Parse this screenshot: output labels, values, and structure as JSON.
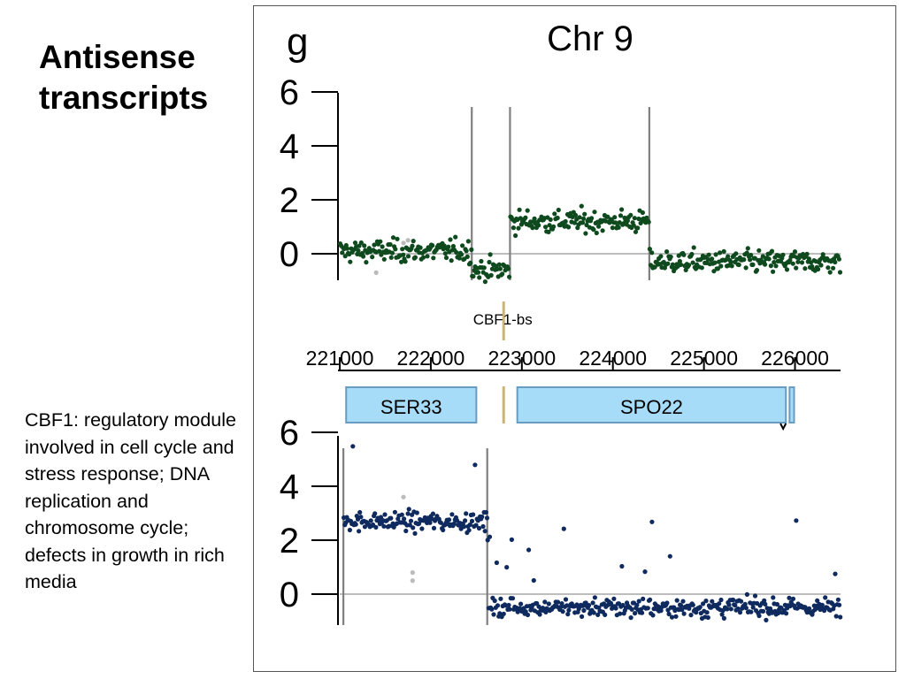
{
  "slide": {
    "title": "Antisense transcripts",
    "note": "CBF1: regulatory module involved in cell cycle and stress response; DNA replication and chromosome cycle; defects in growth in rich media"
  },
  "colors": {
    "top_points": "#0f4a1e",
    "bottom_points": "#0f2a5e",
    "outlier_points": "#bbbbbb",
    "gene_fill": "#a6dcf8",
    "gene_stroke": "#6a9cc0",
    "binding_site": "#c9b47a",
    "boundary_line": "#808080",
    "baseline": "#bdbdbd"
  },
  "chart_data": {
    "type": "scatter",
    "panel_label": "g",
    "title": "Chr 9",
    "x_ticks": [
      221000,
      222000,
      223000,
      224000,
      225000,
      226000
    ],
    "xlim": [
      221000,
      226500
    ],
    "y_ticks": [
      0,
      2,
      4,
      6
    ],
    "ylim": [
      -1,
      6
    ],
    "top_panel": {
      "strand": "top",
      "boundaries": [
        222450,
        222870,
        224400
      ],
      "baseline": 0,
      "segments": [
        {
          "x_start": 221000,
          "x_end": 222450,
          "mean": 0.1
        },
        {
          "x_start": 222450,
          "x_end": 222870,
          "mean": -0.6
        },
        {
          "x_start": 222870,
          "x_end": 224400,
          "mean": 1.2
        },
        {
          "x_start": 224400,
          "x_end": 226500,
          "mean": -0.3
        }
      ],
      "outliers": [
        {
          "x": 221400,
          "y": -0.7
        },
        {
          "x": 221700,
          "y": 0.4
        },
        {
          "x": 221750,
          "y": 0.5
        }
      ]
    },
    "bottom_panel": {
      "strand": "bottom",
      "boundaries": [
        221040,
        222620
      ],
      "baseline": 0,
      "segments": [
        {
          "x_start": 221040,
          "x_end": 222620,
          "mean": 2.7
        },
        {
          "x_start": 222620,
          "x_end": 226500,
          "mean": -0.5
        }
      ],
      "outliers": [
        {
          "x": 221800,
          "y": 0.8
        },
        {
          "x": 221800,
          "y": 0.5
        },
        {
          "x": 221700,
          "y": 3.6
        }
      ]
    },
    "annotations": {
      "binding_site": {
        "label": "CBF1-bs",
        "x": 222800
      },
      "genes": [
        {
          "name": "SER33",
          "start": 221070,
          "end": 222500
        },
        {
          "name": "SPO22",
          "start": 222950,
          "end": 225900
        },
        {
          "name": "",
          "start": 225940,
          "end": 225990
        }
      ]
    }
  }
}
